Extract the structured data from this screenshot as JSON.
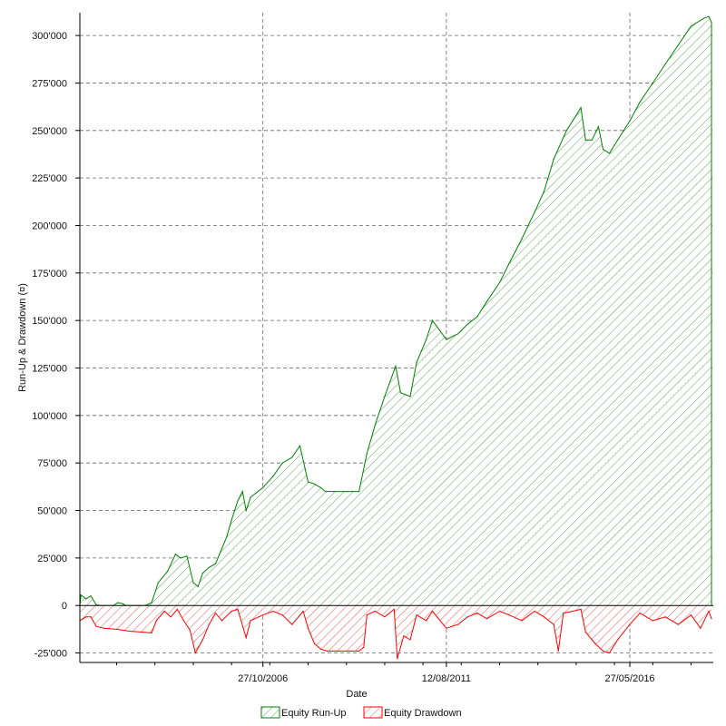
{
  "chart_data": {
    "type": "area",
    "xlabel": "Date",
    "ylabel": "Run-Up & Drawdown (¤)",
    "x_tick_labels": [
      "27/10/2006",
      "12/08/2011",
      "27/05/2016"
    ],
    "x_ticks": [
      "2006-10-27",
      "2011-08-12",
      "2016-05-27"
    ],
    "xlim": [
      "2002-01-15",
      "2018-08-01"
    ],
    "y_tick_labels": [
      "300'000",
      "275'000",
      "250'000",
      "225'000",
      "200'000",
      "175'000",
      "150'000",
      "125'000",
      "100'000",
      "75'000",
      "50'000",
      "25'000",
      "0",
      "-25'000"
    ],
    "y_ticks": [
      300000,
      275000,
      250000,
      225000,
      200000,
      175000,
      150000,
      125000,
      100000,
      75000,
      50000,
      25000,
      0,
      -25000
    ],
    "ylim": [
      -30000,
      312000
    ],
    "grid": true,
    "legend_position": "bottom",
    "series": [
      {
        "name": "Equity Run-Up",
        "color": "#008000",
        "fill": "hatch",
        "points": [
          [
            "2002-01-15",
            0
          ],
          [
            "2002-01-25",
            5500
          ],
          [
            "2002-03-15",
            3500
          ],
          [
            "2002-05-01",
            5000
          ],
          [
            "2002-06-20",
            300
          ],
          [
            "2002-08-01",
            0
          ],
          [
            "2002-12-01",
            0
          ],
          [
            "2003-01-10",
            1500
          ],
          [
            "2003-02-25",
            1000
          ],
          [
            "2003-04-01",
            0
          ],
          [
            "2003-07-01",
            0
          ],
          [
            "2003-10-01",
            0
          ],
          [
            "2003-12-01",
            1500
          ],
          [
            "2004-02-01",
            12000
          ],
          [
            "2004-05-01",
            18000
          ],
          [
            "2004-07-15",
            27000
          ],
          [
            "2004-09-01",
            25000
          ],
          [
            "2004-11-01",
            26000
          ],
          [
            "2005-01-01",
            12000
          ],
          [
            "2005-02-15",
            10000
          ],
          [
            "2005-04-01",
            17000
          ],
          [
            "2005-06-01",
            20000
          ],
          [
            "2005-08-01",
            22000
          ],
          [
            "2005-10-01",
            30000
          ],
          [
            "2005-11-15",
            36000
          ],
          [
            "2006-01-01",
            45000
          ],
          [
            "2006-03-01",
            55000
          ],
          [
            "2006-04-15",
            60000
          ],
          [
            "2006-05-20",
            50000
          ],
          [
            "2006-07-01",
            57000
          ],
          [
            "2006-10-27",
            62000
          ],
          [
            "2007-02-01",
            68000
          ],
          [
            "2007-05-01",
            75000
          ],
          [
            "2007-08-01",
            78000
          ],
          [
            "2007-10-15",
            84000
          ],
          [
            "2008-01-01",
            65000
          ],
          [
            "2008-03-01",
            64000
          ],
          [
            "2008-05-01",
            62000
          ],
          [
            "2008-06-15",
            60000
          ],
          [
            "2008-09-01",
            60000
          ],
          [
            "2009-01-01",
            60000
          ],
          [
            "2009-05-01",
            60000
          ],
          [
            "2009-07-15",
            80000
          ],
          [
            "2009-10-01",
            95000
          ],
          [
            "2010-01-01",
            110000
          ],
          [
            "2010-04-15",
            126000
          ],
          [
            "2010-06-01",
            112000
          ],
          [
            "2010-09-01",
            110000
          ],
          [
            "2010-11-01",
            128000
          ],
          [
            "2011-02-01",
            140000
          ],
          [
            "2011-04-01",
            150000
          ],
          [
            "2011-08-12",
            140000
          ],
          [
            "2011-12-01",
            143000
          ],
          [
            "2012-03-01",
            148000
          ],
          [
            "2012-06-01",
            152000
          ],
          [
            "2012-09-01",
            160000
          ],
          [
            "2013-01-01",
            170000
          ],
          [
            "2013-04-01",
            180000
          ],
          [
            "2013-08-01",
            193000
          ],
          [
            "2013-12-01",
            207000
          ],
          [
            "2014-03-01",
            218000
          ],
          [
            "2014-06-01",
            235000
          ],
          [
            "2014-10-01",
            250000
          ],
          [
            "2015-01-01",
            258000
          ],
          [
            "2015-02-15",
            262000
          ],
          [
            "2015-04-01",
            245000
          ],
          [
            "2015-06-01",
            245000
          ],
          [
            "2015-08-01",
            252000
          ],
          [
            "2015-09-15",
            240000
          ],
          [
            "2015-11-15",
            238000
          ],
          [
            "2016-02-01",
            245000
          ],
          [
            "2016-05-27",
            255000
          ],
          [
            "2016-09-01",
            265000
          ],
          [
            "2017-01-01",
            275000
          ],
          [
            "2017-05-01",
            285000
          ],
          [
            "2017-09-01",
            295000
          ],
          [
            "2018-01-01",
            305000
          ],
          [
            "2018-05-01",
            309000
          ],
          [
            "2018-06-20",
            310000
          ],
          [
            "2018-07-15",
            307000
          ]
        ]
      },
      {
        "name": "Equity Drawdown",
        "color": "#ff0000",
        "fill": "hatch",
        "points": [
          [
            "2002-01-15",
            -8000
          ],
          [
            "2002-03-15",
            -6000
          ],
          [
            "2002-05-01",
            -6000
          ],
          [
            "2002-06-20",
            -11000
          ],
          [
            "2002-09-01",
            -12000
          ],
          [
            "2003-01-01",
            -12500
          ],
          [
            "2003-05-01",
            -13500
          ],
          [
            "2003-09-01",
            -14000
          ],
          [
            "2003-12-01",
            -14500
          ],
          [
            "2004-01-15",
            -8000
          ],
          [
            "2004-04-01",
            -3000
          ],
          [
            "2004-06-01",
            -6000
          ],
          [
            "2004-08-01",
            -2000
          ],
          [
            "2004-10-01",
            -8000
          ],
          [
            "2004-12-01",
            -13000
          ],
          [
            "2005-01-20",
            -25000
          ],
          [
            "2005-04-01",
            -18000
          ],
          [
            "2005-06-01",
            -10000
          ],
          [
            "2005-08-01",
            -4000
          ],
          [
            "2005-10-01",
            -8000
          ],
          [
            "2006-01-01",
            -3000
          ],
          [
            "2006-03-01",
            -2000
          ],
          [
            "2006-05-20",
            -17000
          ],
          [
            "2006-07-01",
            -8000
          ],
          [
            "2006-10-27",
            -5000
          ],
          [
            "2007-02-01",
            -3000
          ],
          [
            "2007-05-01",
            -5000
          ],
          [
            "2007-08-01",
            -10000
          ],
          [
            "2007-11-15",
            -3000
          ],
          [
            "2008-01-01",
            -12000
          ],
          [
            "2008-03-01",
            -20000
          ],
          [
            "2008-05-01",
            -23000
          ],
          [
            "2008-07-01",
            -24000
          ],
          [
            "2008-10-01",
            -24000
          ],
          [
            "2009-02-01",
            -24000
          ],
          [
            "2009-05-01",
            -24000
          ],
          [
            "2009-06-15",
            -22000
          ],
          [
            "2009-07-15",
            -5000
          ],
          [
            "2009-10-01",
            -3000
          ],
          [
            "2010-01-01",
            -6000
          ],
          [
            "2010-04-01",
            -2000
          ],
          [
            "2010-05-01",
            -28000
          ],
          [
            "2010-07-01",
            -16000
          ],
          [
            "2010-09-01",
            -18000
          ],
          [
            "2010-11-01",
            -5000
          ],
          [
            "2011-02-01",
            -8000
          ],
          [
            "2011-04-01",
            -3000
          ],
          [
            "2011-08-12",
            -12000
          ],
          [
            "2011-12-01",
            -10000
          ],
          [
            "2012-03-01",
            -6000
          ],
          [
            "2012-06-01",
            -4000
          ],
          [
            "2012-09-01",
            -7000
          ],
          [
            "2013-01-01",
            -3000
          ],
          [
            "2013-04-01",
            -5000
          ],
          [
            "2013-08-01",
            -8000
          ],
          [
            "2013-12-01",
            -3000
          ],
          [
            "2014-03-01",
            -6000
          ],
          [
            "2014-06-01",
            -10000
          ],
          [
            "2014-07-15",
            -24000
          ],
          [
            "2014-09-01",
            -4000
          ],
          [
            "2014-12-01",
            -3000
          ],
          [
            "2015-02-15",
            -2000
          ],
          [
            "2015-04-01",
            -14000
          ],
          [
            "2015-07-01",
            -20000
          ],
          [
            "2015-09-15",
            -24000
          ],
          [
            "2015-11-15",
            -25000
          ],
          [
            "2016-02-01",
            -18000
          ],
          [
            "2016-05-27",
            -10000
          ],
          [
            "2016-09-01",
            -4000
          ],
          [
            "2017-01-01",
            -8000
          ],
          [
            "2017-05-01",
            -6000
          ],
          [
            "2017-09-01",
            -10000
          ],
          [
            "2018-01-01",
            -5000
          ],
          [
            "2018-04-01",
            -12000
          ],
          [
            "2018-06-20",
            -3000
          ],
          [
            "2018-07-15",
            -7000
          ]
        ]
      }
    ]
  }
}
